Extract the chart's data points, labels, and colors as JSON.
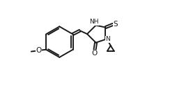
{
  "bg_color": "#ffffff",
  "line_color": "#1a1a1a",
  "lw": 1.4,
  "fs": 7.5,
  "fs_nh": 6.5,
  "xlim": [
    0,
    10.5
  ],
  "ylim": [
    1.5,
    8.5
  ],
  "figsize": [
    2.54,
    1.23
  ],
  "dpi": 100
}
